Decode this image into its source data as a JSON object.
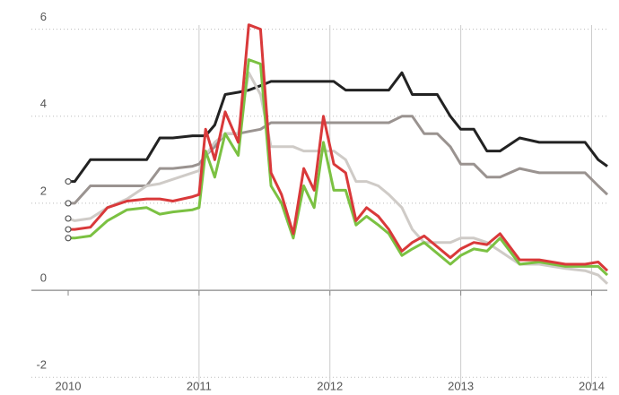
{
  "chart_data": {
    "type": "line",
    "x": [
      2010.0,
      2010.05,
      2010.17,
      2010.3,
      2010.45,
      2010.6,
      2010.7,
      2010.8,
      2010.95,
      2011.0,
      2011.05,
      2011.12,
      2011.2,
      2011.3,
      2011.38,
      2011.47,
      2011.55,
      2011.63,
      2011.72,
      2011.8,
      2011.88,
      2011.95,
      2012.03,
      2012.12,
      2012.2,
      2012.28,
      2012.37,
      2012.45,
      2012.55,
      2012.63,
      2012.72,
      2012.82,
      2012.92,
      2013.0,
      2013.1,
      2013.2,
      2013.3,
      2013.45,
      2013.6,
      2013.8,
      2013.95,
      2014.05,
      2014.12
    ],
    "series": [
      {
        "color": "#222222",
        "values": [
          2.5,
          2.5,
          3.0,
          3.0,
          3.0,
          3.0,
          3.5,
          3.5,
          3.55,
          3.55,
          3.55,
          3.8,
          4.5,
          4.55,
          4.6,
          4.7,
          4.8,
          4.8,
          4.8,
          4.8,
          4.8,
          4.8,
          4.8,
          4.6,
          4.6,
          4.6,
          4.6,
          4.6,
          5.0,
          4.5,
          4.5,
          4.5,
          4.0,
          3.7,
          3.7,
          3.2,
          3.2,
          3.5,
          3.4,
          3.4,
          3.4,
          3.0,
          2.85
        ]
      },
      {
        "color": "#9a9390",
        "values": [
          2.0,
          2.0,
          2.4,
          2.4,
          2.4,
          2.4,
          2.8,
          2.8,
          2.85,
          2.9,
          3.1,
          3.3,
          3.6,
          3.6,
          3.65,
          3.7,
          3.85,
          3.85,
          3.85,
          3.85,
          3.85,
          3.85,
          3.85,
          3.85,
          3.85,
          3.85,
          3.85,
          3.85,
          4.0,
          4.0,
          3.6,
          3.6,
          3.3,
          2.9,
          2.9,
          2.6,
          2.6,
          2.8,
          2.7,
          2.7,
          2.7,
          2.4,
          2.2
        ]
      },
      {
        "color": "#cfcbc7",
        "values": [
          1.65,
          1.6,
          1.65,
          1.9,
          2.1,
          2.4,
          2.45,
          2.55,
          2.7,
          2.75,
          3.1,
          3.4,
          3.6,
          3.6,
          5.0,
          4.5,
          3.3,
          3.3,
          3.3,
          3.2,
          3.2,
          3.2,
          3.2,
          3.0,
          2.5,
          2.5,
          2.4,
          2.2,
          1.9,
          1.4,
          1.1,
          1.1,
          1.1,
          1.2,
          1.2,
          1.1,
          0.9,
          0.6,
          0.6,
          0.5,
          0.45,
          0.35,
          0.15
        ]
      },
      {
        "color": "#7bc142",
        "values": [
          1.2,
          1.2,
          1.25,
          1.6,
          1.85,
          1.9,
          1.75,
          1.8,
          1.85,
          1.9,
          3.2,
          2.6,
          3.6,
          3.1,
          5.3,
          5.2,
          2.4,
          2.0,
          1.2,
          2.4,
          1.9,
          3.4,
          2.3,
          2.3,
          1.5,
          1.7,
          1.5,
          1.3,
          0.8,
          0.95,
          1.1,
          0.85,
          0.6,
          0.8,
          0.95,
          0.9,
          1.2,
          0.6,
          0.65,
          0.55,
          0.55,
          0.55,
          0.35
        ]
      },
      {
        "color": "#d9393a",
        "values": [
          1.4,
          1.4,
          1.45,
          1.9,
          2.05,
          2.1,
          2.1,
          2.05,
          2.15,
          2.2,
          3.7,
          3.0,
          4.1,
          3.4,
          6.1,
          6.0,
          2.7,
          2.2,
          1.3,
          2.8,
          2.3,
          4.0,
          2.9,
          2.7,
          1.6,
          1.9,
          1.7,
          1.4,
          0.9,
          1.1,
          1.25,
          1.0,
          0.75,
          0.95,
          1.1,
          1.05,
          1.3,
          0.7,
          0.7,
          0.6,
          0.6,
          0.65,
          0.45
        ]
      }
    ],
    "xlim": [
      2010.0,
      2014.12
    ],
    "xticks": [
      2010,
      2011,
      2012,
      2013,
      2014
    ],
    "ylim": [
      -2.2,
      6.3
    ],
    "yticks": [
      6,
      4,
      2,
      0,
      -2
    ],
    "grid": true
  }
}
